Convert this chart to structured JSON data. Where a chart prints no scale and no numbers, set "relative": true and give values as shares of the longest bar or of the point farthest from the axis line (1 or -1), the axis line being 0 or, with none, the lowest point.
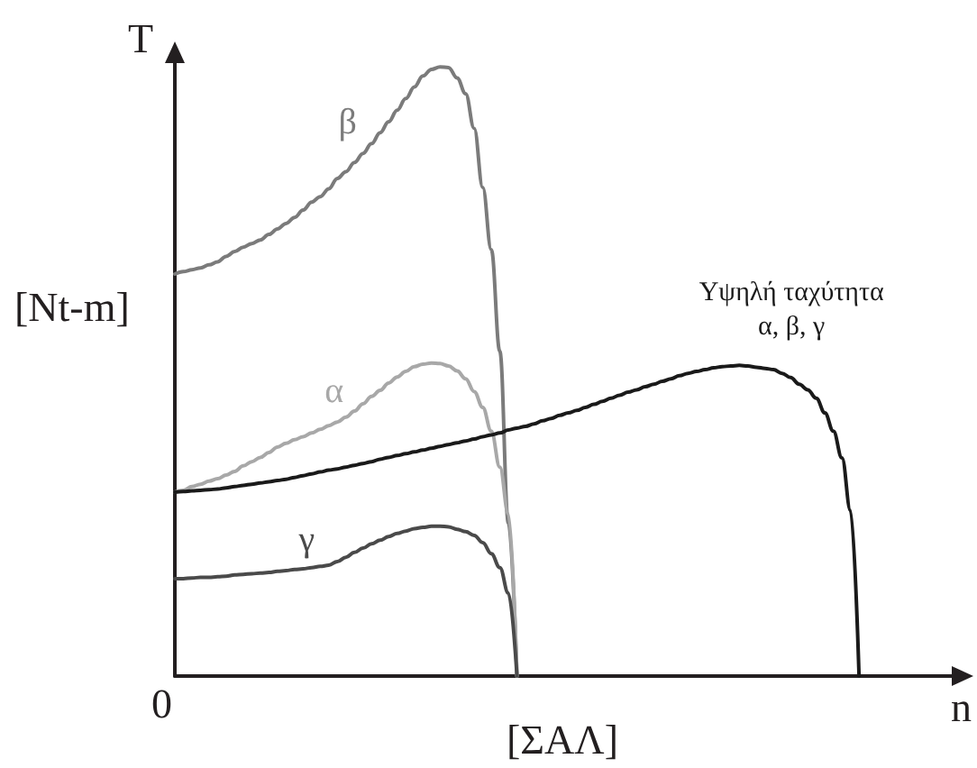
{
  "chart_data": {
    "type": "line",
    "relative": true,
    "xlabel": "n",
    "ylabel": "T",
    "annotations": [
      "[Nt-m]",
      "[ΣΑΛ]",
      "0"
    ],
    "categories": [
      null,
      null,
      null,
      null,
      null,
      null,
      null,
      null,
      null,
      null,
      null,
      null,
      null,
      null,
      null,
      null,
      null,
      null,
      null,
      null,
      null,
      null,
      null,
      null,
      null,
      null,
      null,
      null,
      null,
      null,
      null,
      null,
      null,
      null,
      null,
      null,
      null,
      null,
      null,
      null,
      null,
      null,
      null,
      null,
      null,
      null,
      null,
      null,
      null,
      null,
      null,
      null,
      null,
      null,
      null,
      null,
      null,
      null,
      null,
      null,
      null,
      null,
      null,
      null,
      null,
      null,
      null,
      null,
      null,
      null,
      null,
      null,
      null,
      null,
      null,
      null,
      null,
      null,
      null,
      null,
      null,
      null,
      null,
      null,
      null,
      null,
      null,
      null,
      null,
      null,
      null,
      null,
      null
    ],
    "series": [
      {
        "name": "β",
        "color": "#7b7b7b",
        "values": [
          0.66,
          0.664,
          0.667,
          0.67,
          0.675,
          0.68,
          0.689,
          0.697,
          0.704,
          0.71,
          0.716,
          0.725,
          0.734,
          0.743,
          0.753,
          0.765,
          0.778,
          0.787,
          0.8,
          0.817,
          0.828,
          0.843,
          0.858,
          0.874,
          0.892,
          0.91,
          0.929,
          0.948,
          0.967,
          0.985,
          0.996,
          1,
          0.999,
          0.982,
          0.956,
          0.899,
          0.802,
          0.7,
          0.533,
          0.251,
          0,
          null,
          null,
          null,
          null,
          null,
          null,
          null,
          null,
          null,
          null,
          null,
          null,
          null,
          null,
          null,
          null,
          null,
          null,
          null,
          null,
          null,
          null,
          null,
          null,
          null,
          null,
          null,
          null,
          null,
          null,
          null,
          null,
          null,
          null,
          null,
          null,
          null,
          null,
          null,
          null,
          null,
          null,
          null,
          null,
          null,
          null,
          null,
          null,
          null,
          null,
          null,
          null
        ]
      },
      {
        "name": "α",
        "color": "#a8a8a8",
        "values": [
          0.302,
          0.305,
          0.311,
          0.315,
          0.32,
          0.324,
          0.33,
          0.336,
          0.345,
          0.352,
          0.359,
          0.367,
          0.376,
          0.382,
          0.388,
          0.393,
          0.399,
          0.405,
          0.411,
          0.417,
          0.425,
          0.435,
          0.447,
          0.459,
          0.469,
          0.481,
          0.491,
          0.5,
          0.508,
          0.512,
          0.514,
          0.513,
          0.509,
          0.501,
          0.488,
          0.467,
          0.441,
          0.402,
          0.343,
          0.266,
          0,
          null,
          null,
          null,
          null,
          null,
          null,
          null,
          null,
          null,
          null,
          null,
          null,
          null,
          null,
          null,
          null,
          null,
          null,
          null,
          null,
          null,
          null,
          null,
          null,
          null,
          null,
          null,
          null,
          null,
          null,
          null,
          null,
          null,
          null,
          null,
          null,
          null,
          null,
          null,
          null,
          null,
          null,
          null,
          null,
          null,
          null,
          null,
          null,
          null,
          null,
          null,
          null
        ]
      },
      {
        "name": "γ",
        "color": "#4a4a4a",
        "values": [
          0.16,
          0.16,
          0.161,
          0.162,
          0.162,
          0.163,
          0.164,
          0.166,
          0.167,
          0.168,
          0.169,
          0.17,
          0.172,
          0.173,
          0.175,
          0.176,
          0.178,
          0.18,
          0.182,
          0.188,
          0.195,
          0.203,
          0.21,
          0.217,
          0.223,
          0.229,
          0.234,
          0.238,
          0.242,
          0.244,
          0.246,
          0.246,
          0.245,
          0.241,
          0.237,
          0.231,
          0.219,
          0.201,
          0.178,
          0.136,
          0,
          null,
          null,
          null,
          null,
          null,
          null,
          null,
          null,
          null,
          null,
          null,
          null,
          null,
          null,
          null,
          null,
          null,
          null,
          null,
          null,
          null,
          null,
          null,
          null,
          null,
          null,
          null,
          null,
          null,
          null,
          null,
          null,
          null,
          null,
          null,
          null,
          null,
          null,
          null,
          null,
          null,
          null,
          null,
          null,
          null,
          null,
          null,
          null,
          null,
          null,
          null,
          null
        ]
      },
      {
        "name": "Υψηλή ταχύτητα\nα, β, γ",
        "color": "#1a1a1a",
        "values": [
          0.302,
          0.303,
          0.304,
          0.305,
          0.306,
          0.307,
          0.309,
          0.311,
          0.313,
          0.315,
          0.317,
          0.319,
          0.321,
          0.323,
          0.326,
          0.329,
          0.332,
          0.335,
          0.338,
          0.34,
          0.343,
          0.346,
          0.349,
          0.352,
          0.356,
          0.359,
          0.362,
          0.365,
          0.368,
          0.371,
          0.374,
          0.377,
          0.38,
          0.383,
          0.386,
          0.389,
          0.393,
          0.396,
          0.399,
          0.404,
          0.407,
          0.41,
          0.414,
          0.419,
          0.423,
          0.428,
          0.432,
          0.436,
          0.441,
          0.446,
          0.451,
          0.456,
          0.461,
          0.466,
          0.47,
          0.475,
          0.479,
          0.484,
          0.488,
          0.493,
          0.497,
          0.5,
          0.503,
          0.506,
          0.508,
          0.509,
          0.51,
          0.509,
          0.507,
          0.505,
          0.503,
          0.497,
          0.49,
          0.479,
          0.47,
          0.456,
          0.432,
          0.402,
          0.358,
          0.272,
          0,
          null,
          null,
          null,
          null,
          null,
          null,
          null,
          null,
          null,
          null,
          null,
          null
        ]
      }
    ]
  }
}
